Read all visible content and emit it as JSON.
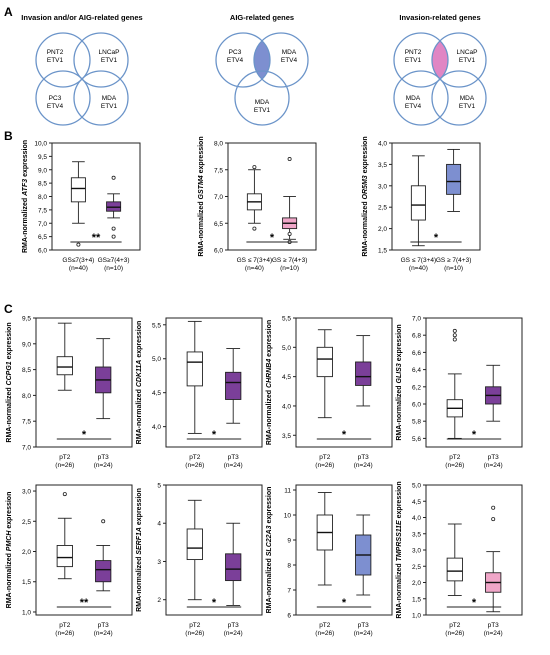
{
  "panel_labels": {
    "A": "A",
    "B": "B",
    "C": "C"
  },
  "colors": {
    "purple": "#7b3f99",
    "blue": "#7d8fd0",
    "pink": "#e086c4",
    "light_pink": "#f0a6c8",
    "circle": "#6b94c9"
  },
  "venn": [
    {
      "title": "Invasion and/or AIG-related genes",
      "labels": [
        "PNT2\nETV1",
        "LNCaP\nETV1",
        "PC3\nETV4",
        "MDA\nETV1"
      ],
      "highlight": "center",
      "color": "#7b3f99"
    },
    {
      "title": "AIG-related genes",
      "labels": [
        "PC3\nETV4",
        "MDA\nETV4",
        "MDA\nETV1"
      ],
      "highlight": "top-center",
      "color": "#7d8fd0"
    },
    {
      "title": "Invasion-related genes",
      "labels": [
        "PNT2\nETV1",
        "LNCaP\nETV1",
        "MDA\nETV4",
        "MDA\nETV1"
      ],
      "highlight": "top-center",
      "color": "#e086c4"
    }
  ],
  "chart_data": [
    {
      "type": "box",
      "panel": "B",
      "gene": "ATF3",
      "ylabel_prefix": "RMA-normalized",
      "ylabel_suffix": "expression",
      "yticks": [
        "6,0",
        "6,5",
        "7,0",
        "7,5",
        "8,0",
        "8,5",
        "9,0",
        "9,5",
        "10,0"
      ],
      "ylim": [
        6.0,
        10.0
      ],
      "categories": [
        "GS≤7(3+4)\n(n=40)",
        "GS≥7(4+3)\n(n=10)"
      ],
      "boxes": [
        {
          "whislo": 7.0,
          "q1": 7.8,
          "med": 8.3,
          "q3": 8.7,
          "whishi": 9.3,
          "fliers": [
            6.2
          ],
          "color": "#ffffff"
        },
        {
          "whislo": 7.2,
          "q1": 7.45,
          "med": 7.6,
          "q3": 7.8,
          "whishi": 8.1,
          "fliers": [
            8.7,
            6.8,
            6.5
          ],
          "color": "#7b3f99"
        }
      ],
      "significance": "**"
    },
    {
      "type": "box",
      "panel": "B",
      "gene": "GSTM4",
      "ylabel_prefix": "RMA-normalized",
      "ylabel_suffix": "expression",
      "yticks": [
        "6,0",
        "6,5",
        "7,0",
        "7,5",
        "8,0"
      ],
      "ylim": [
        6.0,
        8.0
      ],
      "categories": [
        "GS ≤ 7(3+4)\n(n=40)",
        "GS ≥ 7(4+3)\n(n=10)"
      ],
      "boxes": [
        {
          "whislo": 6.5,
          "q1": 6.75,
          "med": 6.9,
          "q3": 7.05,
          "whishi": 7.5,
          "fliers": [
            7.55,
            6.4
          ],
          "color": "#ffffff"
        },
        {
          "whislo": 6.2,
          "q1": 6.4,
          "med": 6.5,
          "q3": 6.6,
          "whishi": 7.0,
          "fliers": [
            7.7,
            6.3,
            6.15
          ],
          "color": "#f0a6c8"
        }
      ],
      "significance": "*"
    },
    {
      "type": "box",
      "panel": "B",
      "gene": "OR5M3",
      "ylabel_prefix": "RMA-normalized",
      "ylabel_suffix": "expression",
      "yticks": [
        "1,5",
        "2,0",
        "2,5",
        "3,0",
        "3,5",
        "4,0"
      ],
      "ylim": [
        1.5,
        4.0
      ],
      "categories": [
        "GS ≤ 7(3+4)\n(n=40)",
        "GS ≥ 7(4+3)\n(n=10)"
      ],
      "boxes": [
        {
          "whislo": 1.6,
          "q1": 2.2,
          "med": 2.55,
          "q3": 3.0,
          "whishi": 3.7,
          "fliers": [],
          "color": "#ffffff"
        },
        {
          "whislo": 2.4,
          "q1": 2.8,
          "med": 3.1,
          "q3": 3.5,
          "whishi": 3.85,
          "fliers": [],
          "color": "#7d8fd0"
        }
      ],
      "significance": "*"
    },
    {
      "type": "box",
      "panel": "C",
      "gene": "CCPG1",
      "ylabel_prefix": "RMA-normalized",
      "ylabel_suffix": "expression",
      "yticks": [
        "7,0",
        "7,5",
        "8,0",
        "8,5",
        "9,0",
        "9,5"
      ],
      "ylim": [
        7.0,
        9.5
      ],
      "categories": [
        "pT2\n(n=26)",
        "pT3\n(n=24)"
      ],
      "boxes": [
        {
          "whislo": 8.1,
          "q1": 8.4,
          "med": 8.55,
          "q3": 8.75,
          "whishi": 9.4,
          "fliers": [],
          "color": "#ffffff"
        },
        {
          "whislo": 7.55,
          "q1": 8.05,
          "med": 8.3,
          "q3": 8.55,
          "whishi": 9.1,
          "fliers": [],
          "color": "#7b3f99"
        }
      ],
      "significance": "*"
    },
    {
      "type": "box",
      "panel": "C",
      "gene": "CDK11A",
      "ylabel_prefix": "RMA-normalized",
      "ylabel_suffix": "expression",
      "yticks": [
        "4,0",
        "4,5",
        "5,0",
        "5,5"
      ],
      "ylim": [
        3.7,
        5.6
      ],
      "categories": [
        "pT2\n(n=26)",
        "pT3\n(n=24)"
      ],
      "boxes": [
        {
          "whislo": 3.9,
          "q1": 4.6,
          "med": 4.95,
          "q3": 5.1,
          "whishi": 5.55,
          "fliers": [],
          "color": "#ffffff"
        },
        {
          "whislo": 4.05,
          "q1": 4.4,
          "med": 4.65,
          "q3": 4.8,
          "whishi": 5.15,
          "fliers": [],
          "color": "#7b3f99"
        }
      ],
      "significance": "*"
    },
    {
      "type": "box",
      "panel": "C",
      "gene": "CHRNB4",
      "ylabel_prefix": "RMA-normalized",
      "ylabel_suffix": "expression",
      "yticks": [
        "3,5",
        "4,0",
        "4,5",
        "5,0",
        "5,5"
      ],
      "ylim": [
        3.3,
        5.5
      ],
      "categories": [
        "pT2\n(n=26)",
        "pT3\n(n=24)"
      ],
      "boxes": [
        {
          "whislo": 3.8,
          "q1": 4.5,
          "med": 4.8,
          "q3": 5.0,
          "whishi": 5.3,
          "fliers": [],
          "color": "#ffffff"
        },
        {
          "whislo": 4.0,
          "q1": 4.35,
          "med": 4.5,
          "q3": 4.75,
          "whishi": 5.2,
          "fliers": [],
          "color": "#7b3f99"
        }
      ],
      "significance": "*"
    },
    {
      "type": "box",
      "panel": "C",
      "gene": "GLIS3",
      "ylabel_prefix": "RMA-normalized",
      "ylabel_suffix": "expression",
      "yticks": [
        "5,6",
        "5,8",
        "6,0",
        "6,2",
        "6,4",
        "6,6",
        "6,8",
        "7,0"
      ],
      "ylim": [
        5.5,
        7.0
      ],
      "categories": [
        "pT2\n(n=26)",
        "pT3\n(n=24)"
      ],
      "boxes": [
        {
          "whislo": 5.6,
          "q1": 5.85,
          "med": 5.95,
          "q3": 6.05,
          "whishi": 6.35,
          "fliers": [
            6.85,
            6.8,
            6.75
          ],
          "color": "#ffffff"
        },
        {
          "whislo": 5.8,
          "q1": 6.0,
          "med": 6.1,
          "q3": 6.2,
          "whishi": 6.45,
          "fliers": [],
          "color": "#7b3f99"
        }
      ],
      "significance": "*"
    },
    {
      "type": "box",
      "panel": "C",
      "gene": "PMCH",
      "ylabel_prefix": "RMA-normalized",
      "ylabel_suffix": "expression",
      "yticks": [
        "1,0",
        "1,5",
        "2,0",
        "2,5",
        "3,0"
      ],
      "ylim": [
        0.95,
        3.1
      ],
      "categories": [
        "pT2\n(n=26)",
        "pT3\n(n=24)"
      ],
      "boxes": [
        {
          "whislo": 1.55,
          "q1": 1.75,
          "med": 1.9,
          "q3": 2.1,
          "whishi": 2.55,
          "fliers": [
            2.95
          ],
          "color": "#ffffff"
        },
        {
          "whislo": 1.35,
          "q1": 1.5,
          "med": 1.7,
          "q3": 1.85,
          "whishi": 2.1,
          "fliers": [
            2.5
          ],
          "color": "#7b3f99"
        }
      ],
      "significance": "**"
    },
    {
      "type": "box",
      "panel": "C",
      "gene": "SERF1A",
      "ylabel_prefix": "RMA-normalized",
      "ylabel_suffix": "expression",
      "yticks": [
        "2",
        "3",
        "4",
        "5"
      ],
      "ylim": [
        1.6,
        5.0
      ],
      "categories": [
        "pT2\n(n=26)",
        "pT3\n(n=24)"
      ],
      "boxes": [
        {
          "whislo": 2.0,
          "q1": 3.05,
          "med": 3.35,
          "q3": 3.85,
          "whishi": 4.6,
          "fliers": [],
          "color": "#ffffff"
        },
        {
          "whislo": 1.85,
          "q1": 2.5,
          "med": 2.8,
          "q3": 3.2,
          "whishi": 4.0,
          "fliers": [],
          "color": "#7b3f99"
        }
      ],
      "significance": "*"
    },
    {
      "type": "box",
      "panel": "C",
      "gene": "SLC22A3",
      "ylabel_prefix": "RMA-normalized",
      "ylabel_suffix": "expression",
      "yticks": [
        "6",
        "7",
        "8",
        "9",
        "10",
        "11"
      ],
      "ylim": [
        6.0,
        11.2
      ],
      "categories": [
        "pT2\n(n=26)",
        "pT3\n(n=24)"
      ],
      "boxes": [
        {
          "whislo": 7.2,
          "q1": 8.6,
          "med": 9.3,
          "q3": 10.0,
          "whishi": 10.9,
          "fliers": [],
          "color": "#ffffff"
        },
        {
          "whislo": 6.8,
          "q1": 7.6,
          "med": 8.4,
          "q3": 9.2,
          "whishi": 10.0,
          "fliers": [],
          "color": "#7d8fd0"
        }
      ],
      "significance": "*"
    },
    {
      "type": "box",
      "panel": "C",
      "gene": "TMPRSS11E",
      "ylabel_prefix": "RMA-normalized",
      "ylabel_suffix": "expression",
      "yticks": [
        "1,0",
        "1,5",
        "2,0",
        "2,5",
        "3,0",
        "3,5",
        "4,0",
        "4,5",
        "5,0"
      ],
      "ylim": [
        1.0,
        5.0
      ],
      "categories": [
        "pT2\n(n=26)",
        "pT3\n(n=24)"
      ],
      "boxes": [
        {
          "whislo": 1.6,
          "q1": 2.05,
          "med": 2.35,
          "q3": 2.75,
          "whishi": 3.8,
          "fliers": [],
          "color": "#ffffff"
        },
        {
          "whislo": 1.1,
          "q1": 1.7,
          "med": 2.0,
          "q3": 2.3,
          "whishi": 2.95,
          "fliers": [
            4.3,
            3.95
          ],
          "color": "#f0a6c8"
        }
      ],
      "significance": "*"
    }
  ]
}
